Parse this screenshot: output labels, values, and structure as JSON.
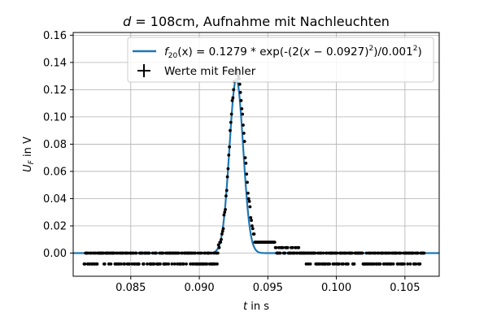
{
  "chart_data": {
    "type": "scatter",
    "title": {
      "var": "d",
      "rest": " = 108cm, Aufnahme mit Nachleuchten"
    },
    "xlabel": {
      "var": "t",
      "rest": " in s"
    },
    "ylabel": {
      "var": "U",
      "sub": "F",
      "rest": " in V"
    },
    "xlim": [
      0.0808,
      0.1075
    ],
    "ylim": [
      -0.017,
      0.162
    ],
    "xticks": [
      0.085,
      0.09,
      0.095,
      0.1,
      0.105
    ],
    "xtick_labels": [
      "0.085",
      "0.090",
      "0.095",
      "0.100",
      "0.105"
    ],
    "yticks": [
      0.0,
      0.02,
      0.04,
      0.06,
      0.08,
      0.1,
      0.12,
      0.14,
      0.16
    ],
    "ytick_labels": [
      "0.00",
      "0.02",
      "0.04",
      "0.06",
      "0.08",
      "0.10",
      "0.12",
      "0.14",
      "0.16"
    ],
    "grid": true,
    "legend_position": "top-right",
    "fit": {
      "label": {
        "func": "f",
        "sub": "20",
        "text": "(x) = 0.1279 * exp(-(2(",
        "var": "x",
        "text2": " − 0.0927)",
        "sup": "2",
        "text3": ")/0.001",
        "sup2": "2",
        "text4": ")"
      },
      "amplitude": 0.1279,
      "center": 0.0927,
      "width": 0.001,
      "color": "#1f77b4"
    },
    "measurements": {
      "label": "Werte mit Fehler",
      "color": "#000000",
      "x_start": 0.0816,
      "x_end": 0.1064,
      "step": 5e-05,
      "baseline_levels": [
        0.0,
        -0.008
      ]
    }
  }
}
